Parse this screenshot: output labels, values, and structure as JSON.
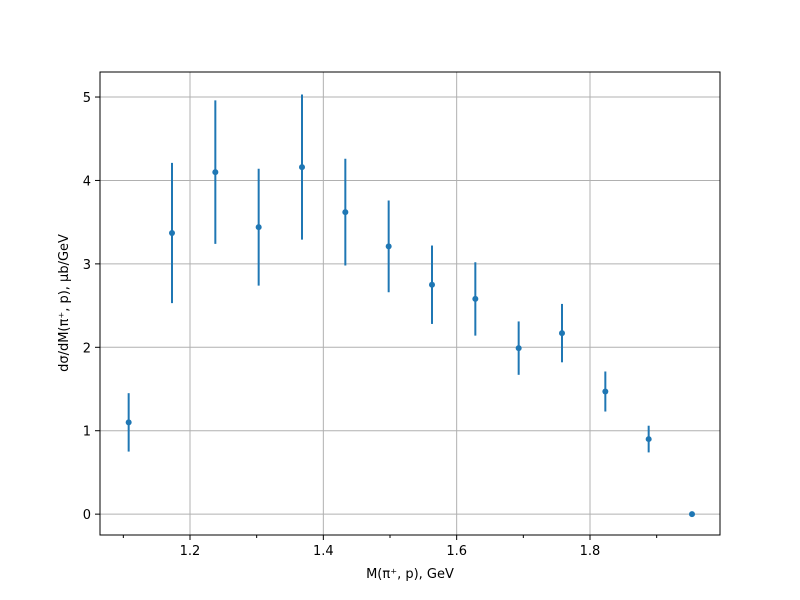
{
  "chart_data": {
    "type": "scatter",
    "title": "",
    "xlabel": "M(π⁺, p), GeV",
    "ylabel": "dσ/dM(π⁺, p), μb/GeV",
    "xlim": [
      1.065,
      1.995
    ],
    "ylim": [
      -0.25,
      5.3
    ],
    "xticks": [
      1.2,
      1.4,
      1.6,
      1.8
    ],
    "xtick_labels": [
      "1.2",
      "1.4",
      "1.6",
      "1.8"
    ],
    "x_minor_ticks": [
      1.1,
      1.3,
      1.5,
      1.7,
      1.9
    ],
    "yticks": [
      0,
      1,
      2,
      3,
      4,
      5
    ],
    "ytick_labels": [
      "0",
      "1",
      "2",
      "3",
      "4",
      "5"
    ],
    "grid": true,
    "legend": "none",
    "color": "#1f77b4",
    "series": [
      {
        "x": [
          1.108,
          1.173,
          1.238,
          1.303,
          1.368,
          1.433,
          1.498,
          1.563,
          1.628,
          1.693,
          1.758,
          1.823,
          1.888,
          1.953
        ],
        "y": [
          1.1,
          3.37,
          4.1,
          3.44,
          4.16,
          3.62,
          3.21,
          2.75,
          2.58,
          1.99,
          2.17,
          1.47,
          0.9,
          0.0
        ],
        "yerr": [
          0.35,
          0.84,
          0.86,
          0.7,
          0.87,
          0.64,
          0.55,
          0.47,
          0.44,
          0.32,
          0.35,
          0.24,
          0.16,
          0.0
        ]
      }
    ]
  }
}
